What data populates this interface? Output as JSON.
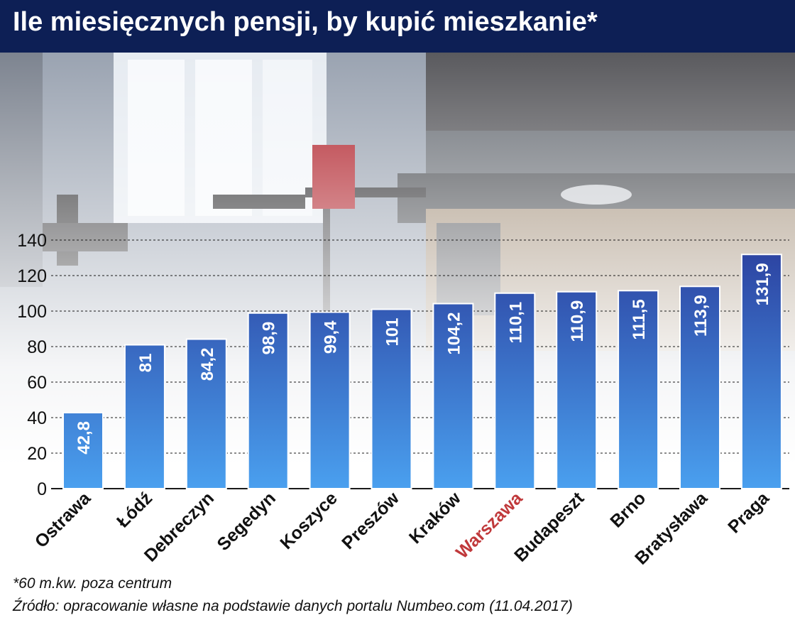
{
  "title": "Ile miesięcznych pensji, by kupić mieszkanie*",
  "footnote": "*60 m.kw. poza centrum",
  "source": "Źródło: opracowanie własne na podstawie danych portalu Numbeo.com (11.04.2017)",
  "chart_data": {
    "type": "bar",
    "title": "Ile miesięcznych pensji, by kupić mieszkanie*",
    "xlabel": "",
    "ylabel": "",
    "ylim": [
      0,
      140
    ],
    "yticks": [
      0,
      20,
      40,
      60,
      80,
      100,
      120,
      140
    ],
    "grid": true,
    "categories": [
      "Ostrawa",
      "Łódź",
      "Debreczyn",
      "Segedyn",
      "Koszyce",
      "Preszów",
      "Kraków",
      "Warszawa",
      "Budapeszt",
      "Brno",
      "Bratysława",
      "Praga"
    ],
    "values": [
      42.8,
      81,
      84.2,
      98.9,
      99.4,
      101,
      104.2,
      110.1,
      110.9,
      111.5,
      113.9,
      131.9
    ],
    "value_labels": [
      "42,8",
      "81",
      "84,2",
      "98,9",
      "99,4",
      "101",
      "104,2",
      "110,1",
      "110,9",
      "111,5",
      "113,9",
      "131,9"
    ],
    "highlight_category": "Warszawa",
    "colors": {
      "bar_top": "#2b3f9e",
      "bar_bottom": "#4aa0ef",
      "bar_border": "#ffffff",
      "highlight_label": "#c0393b",
      "label": "#111111",
      "value_label": "#ffffff",
      "grid": "#1a1a1a"
    }
  }
}
